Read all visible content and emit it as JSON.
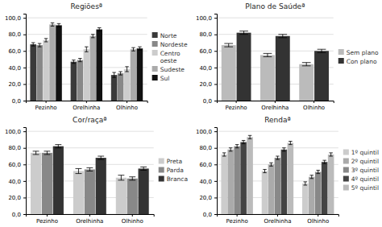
{
  "chart_data": [
    {
      "type": "bar",
      "title": "Regiõesª",
      "categories": [
        "Pezinho",
        "Orelhinha",
        "Olhinho"
      ],
      "series": [
        {
          "name": "Norte",
          "color": "#3a3a3a",
          "values": [
            68,
            47,
            31
          ],
          "errors": [
            2,
            2,
            3
          ]
        },
        {
          "name": "Nordeste",
          "color": "#888888",
          "values": [
            67,
            49,
            33
          ],
          "errors": [
            2,
            2,
            2
          ]
        },
        {
          "name": "Centro\noeste",
          "color": "#cccccc",
          "values": [
            73,
            62,
            38
          ],
          "errors": [
            2,
            3,
            3
          ]
        },
        {
          "name": "Sudeste",
          "color": "#aaaaaa",
          "values": [
            92,
            78,
            62
          ],
          "errors": [
            2,
            2,
            2
          ]
        },
        {
          "name": "Sul",
          "color": "#111111",
          "values": [
            91,
            86,
            63
          ],
          "errors": [
            2,
            2,
            2
          ]
        }
      ],
      "ylim": [
        0,
        105
      ],
      "yticks": [
        {
          "value": 0,
          "label": "0,0"
        },
        {
          "value": 20,
          "label": "20,0"
        },
        {
          "value": 40,
          "label": "40,0"
        },
        {
          "value": 60,
          "label": "60,0"
        },
        {
          "value": 80,
          "label": "80,0"
        },
        {
          "value": 100,
          "label": "100,0"
        }
      ],
      "grid": true,
      "legend": "right"
    },
    {
      "type": "bar",
      "title": "Plano de Saúdeª",
      "categories": [
        "Pezinho",
        "Orelhinha",
        "Olhinho"
      ],
      "series": [
        {
          "name": "Sem plano",
          "color": "#bbbbbb",
          "values": [
            67,
            55,
            44
          ],
          "errors": [
            2,
            2,
            2
          ]
        },
        {
          "name": "Con plano",
          "color": "#333333",
          "values": [
            82,
            78,
            60
          ],
          "errors": [
            2,
            2,
            2
          ]
        }
      ],
      "ylim": [
        0,
        105
      ],
      "yticks": [
        {
          "value": 0,
          "label": "0,0"
        },
        {
          "value": 20,
          "label": "20,0"
        },
        {
          "value": 40,
          "label": "40,0"
        },
        {
          "value": 60,
          "label": "60,0"
        },
        {
          "value": 80,
          "label": "80,0"
        },
        {
          "value": 100,
          "label": "100,0"
        }
      ],
      "grid": true,
      "legend": "right"
    },
    {
      "type": "bar",
      "title": "Cor/raçaª",
      "categories": [
        "Pezinho",
        "Orelhinha",
        "Olhinho"
      ],
      "series": [
        {
          "name": "Preta",
          "color": "#cccccc",
          "values": [
            74,
            52,
            44
          ],
          "errors": [
            2,
            3,
            3
          ]
        },
        {
          "name": "Parda",
          "color": "#888888",
          "values": [
            74,
            54,
            43
          ],
          "errors": [
            2,
            2,
            2
          ]
        },
        {
          "name": "Branca",
          "color": "#333333",
          "values": [
            82,
            68,
            55
          ],
          "errors": [
            2,
            2,
            2
          ]
        }
      ],
      "ylim": [
        0,
        105
      ],
      "yticks": [
        {
          "value": 0,
          "label": "0,0"
        },
        {
          "value": 20,
          "label": "20,0"
        },
        {
          "value": 40,
          "label": "40,0"
        },
        {
          "value": 60,
          "label": "60,0"
        },
        {
          "value": 80,
          "label": "80,0"
        },
        {
          "value": 100,
          "label": "100,0"
        }
      ],
      "grid": true,
      "legend": "right"
    },
    {
      "type": "bar",
      "title": "Rendaª",
      "categories": [
        "Pezinho",
        "Orelhinha",
        "Olhinho"
      ],
      "series": [
        {
          "name": "1º quintil",
          "color": "#cccccc",
          "values": [
            72,
            52,
            37
          ],
          "errors": [
            2,
            2,
            2
          ]
        },
        {
          "name": "2º quintil",
          "color": "#aaaaaa",
          "values": [
            78,
            60,
            45
          ],
          "errors": [
            2,
            2,
            2
          ]
        },
        {
          "name": "3º quintil",
          "color": "#888888",
          "values": [
            82,
            68,
            51
          ],
          "errors": [
            2,
            2,
            2
          ]
        },
        {
          "name": "4º quintil",
          "color": "#444444",
          "values": [
            87,
            78,
            63
          ],
          "errors": [
            2,
            2,
            2
          ]
        },
        {
          "name": "5º quintil",
          "color": "#bbbbbb",
          "values": [
            93,
            86,
            72
          ],
          "errors": [
            2,
            2,
            2
          ]
        }
      ],
      "ylim": [
        0,
        105
      ],
      "yticks": [
        {
          "value": 0,
          "label": "0,0"
        },
        {
          "value": 20,
          "label": "20,0"
        },
        {
          "value": 40,
          "label": "40,0"
        },
        {
          "value": 60,
          "label": "60,0"
        },
        {
          "value": 80,
          "label": "80,0"
        },
        {
          "value": 100,
          "label": "100,0"
        }
      ],
      "grid": true,
      "legend": "right"
    }
  ]
}
